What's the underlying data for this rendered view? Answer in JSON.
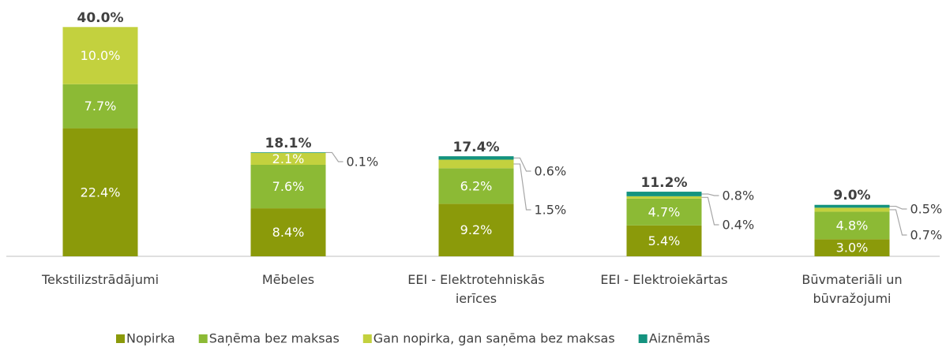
{
  "chart_data": {
    "type": "stacked_bar",
    "categories": [
      "Tekstilizstrādājumi",
      "Mēbeles",
      "EEI - Elektrotehniskās ierīces",
      "EEI - Elektroiekārtas",
      "Būvmateriāli un būvražojumi"
    ],
    "series": [
      {
        "name": "Nopirka",
        "color": "#8b9a0a",
        "values": [
          22.4,
          8.4,
          9.2,
          5.4,
          3.0
        ],
        "value_labels": [
          "22.4%",
          "8.4%",
          "9.2%",
          "5.4%",
          "3.0%"
        ]
      },
      {
        "name": "Saņēma bez maksas",
        "color": "#8cba35",
        "values": [
          7.7,
          7.6,
          6.2,
          4.7,
          4.8
        ],
        "value_labels": [
          "7.7%",
          "7.6%",
          "6.2%",
          "4.7%",
          "4.8%"
        ]
      },
      {
        "name": "Gan nopirka, gan saņēma bez maksas",
        "color": "#c3d13e",
        "values": [
          10.0,
          2.1,
          1.5,
          0.4,
          0.7
        ],
        "value_labels": [
          "10.0%",
          "2.1%",
          "1.5%",
          "0.4%",
          "0.7%"
        ]
      },
      {
        "name": "Aiznēmās",
        "color": "#14937f",
        "values": [
          null,
          0.1,
          0.6,
          0.8,
          0.5
        ],
        "value_labels": [
          null,
          "0.1%",
          "0.6%",
          "0.8%",
          "0.5%"
        ]
      }
    ],
    "totals": {
      "values": [
        40.0,
        18.1,
        17.4,
        11.2,
        9.0
      ],
      "value_labels": [
        "40.0%",
        "18.1%",
        "17.4%",
        "11.2%",
        "9.0%"
      ]
    }
  }
}
